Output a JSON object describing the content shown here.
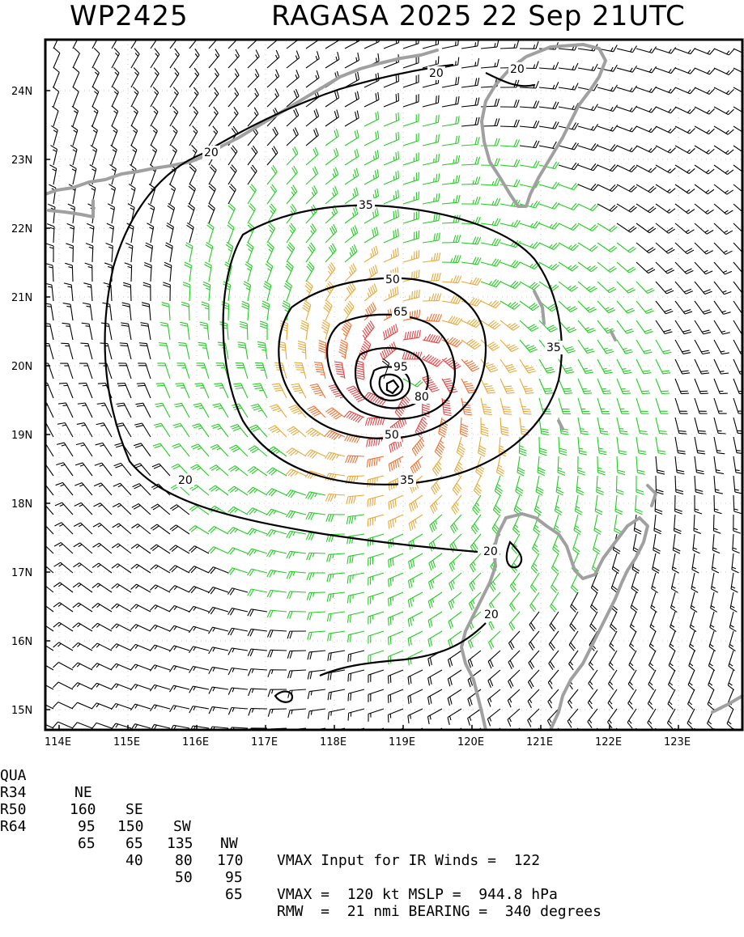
{
  "title": {
    "storm_id": "WP2425",
    "storm_info": "RAGASA 2025 22 Sep 21UTC"
  },
  "axes": {
    "lon_labels": [
      "114E",
      "115E",
      "116E",
      "117E",
      "118E",
      "119E",
      "120E",
      "121E",
      "122E",
      "123E"
    ],
    "lat_labels": [
      "24N",
      "23N",
      "22N",
      "21N",
      "20N",
      "19N",
      "18N",
      "17N",
      "16N",
      "15N"
    ]
  },
  "contour_labels": [
    "20",
    "20",
    "20",
    "20",
    "20",
    "20",
    "35",
    "35",
    "35",
    "50",
    "50",
    "65",
    "80",
    "95"
  ],
  "colors": {
    "calm_barbs": "#000000",
    "gale_barbs": "#22cc22",
    "storm_barbs": "#e8a838",
    "strong_barbs": "#f07030",
    "hurricane_barbs": "#e84040",
    "coastline": "#a0a0a0",
    "contour": "#000000"
  },
  "stats": {
    "header": [
      "QUA",
      "NE",
      "SE",
      "SW",
      "NW"
    ],
    "rows": [
      [
        "R34",
        "160",
        "150",
        "135",
        "170"
      ],
      [
        "R50",
        "95",
        "65",
        "80",
        "95"
      ],
      [
        "R64",
        "65",
        "40",
        "50",
        "65"
      ]
    ],
    "vmax_input": "VMAX Input for IR Winds =  122",
    "vmax_mslp": "VMAX =  120 kt MSLP =  944.8 hPa",
    "rmw_bearing": "RMW  =  21 nmi BEARING =  340 degrees"
  }
}
